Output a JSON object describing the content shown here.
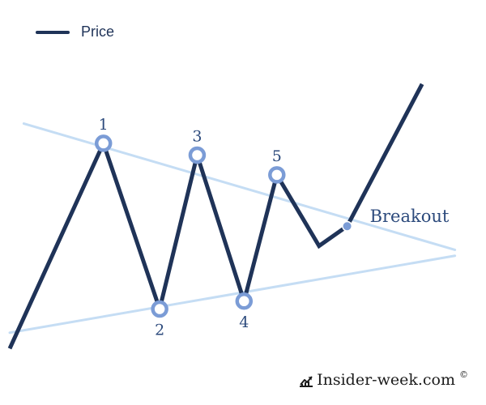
{
  "legend": {
    "label": "Price"
  },
  "watermark": {
    "text": "Insider-week.com",
    "copyright": "©",
    "icon": "trend-chart-icon"
  },
  "colors": {
    "price": "#1f3358",
    "trendline": "#c5ddf4",
    "marker": "#7b9cd6",
    "label": "#2c4a7c"
  },
  "chart_data": {
    "type": "line",
    "series": [
      {
        "name": "Price",
        "points": [
          [
            0,
            0
          ],
          [
            1,
            5.2
          ],
          [
            1.6,
            1
          ],
          [
            2,
            4.9
          ],
          [
            2.5,
            1.2
          ],
          [
            2.85,
            4.4
          ],
          [
            3.3,
            2.6
          ],
          [
            3.6,
            3.1
          ],
          [
            4.4,
            6.7
          ]
        ]
      }
    ],
    "trendlines": {
      "upper": [
        [
          0.15,
          5.7
        ],
        [
          4.75,
          2.5
        ]
      ],
      "lower": [
        [
          0,
          0.4
        ],
        [
          4.75,
          2.35
        ]
      ]
    },
    "pivots": [
      {
        "label": "1",
        "x": 1,
        "y": 5.2,
        "label_pos": "above"
      },
      {
        "label": "2",
        "x": 1.6,
        "y": 1,
        "label_pos": "below"
      },
      {
        "label": "3",
        "x": 2,
        "y": 4.9,
        "label_pos": "above"
      },
      {
        "label": "4",
        "x": 2.5,
        "y": 1.2,
        "label_pos": "below"
      },
      {
        "label": "5",
        "x": 2.85,
        "y": 4.4,
        "label_pos": "above"
      }
    ],
    "breakout": {
      "label": "Breakout",
      "x": 3.6,
      "y": 3.1
    },
    "xlim": [
      0,
      4.9
    ],
    "ylim": [
      -0.2,
      7.6
    ],
    "grid": false
  }
}
